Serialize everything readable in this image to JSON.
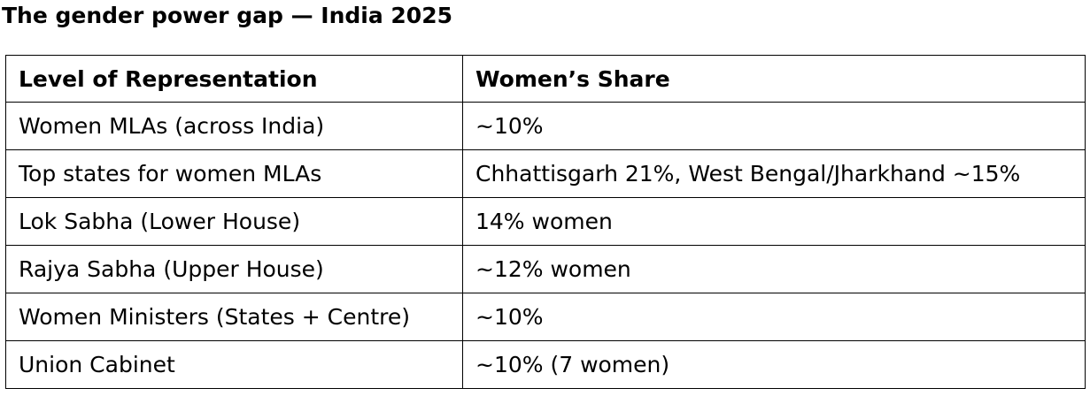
{
  "title": "The gender power gap — India 2025",
  "table": {
    "header": [
      "Level of Representation",
      "Women’s Share"
    ],
    "rows": [
      [
        "Women MLAs (across India)",
        "~10%"
      ],
      [
        "Top states for women MLAs",
        "Chhattisgarh 21%, West Bengal/Jharkhand ~15%"
      ],
      [
        "Lok Sabha (Lower House)",
        "14% women"
      ],
      [
        "Rajya Sabha (Upper House)",
        "~12% women"
      ],
      [
        "Women Ministers (States + Centre)",
        "~10%"
      ],
      [
        "Union Cabinet",
        "~10% (7 women)"
      ]
    ]
  }
}
